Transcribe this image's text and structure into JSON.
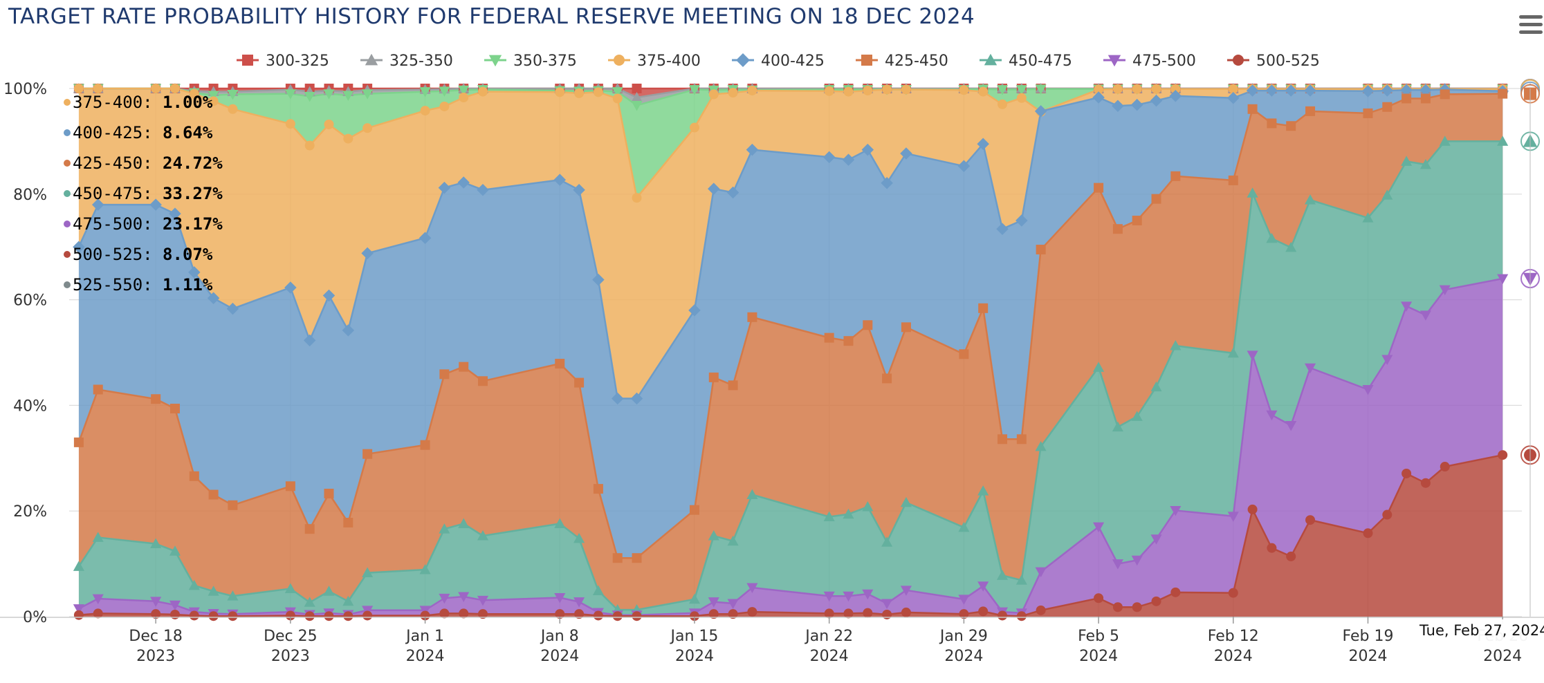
{
  "title": "TARGET RATE PROBABILITY HISTORY FOR FEDERAL RESERVE MEETING ON 18 DEC 2024",
  "hover_date_label": "Tue, Feb 27, 2024",
  "chart_data": {
    "type": "area",
    "stacked": true,
    "title": "TARGET RATE PROBABILITY HISTORY FOR FEDERAL RESERVE MEETING ON 18 DEC 2024",
    "ylim": [
      0,
      100
    ],
    "yticks": [
      "0%",
      "20%",
      "40%",
      "60%",
      "80%",
      "100%"
    ],
    "yticks_values": [
      0,
      20,
      40,
      60,
      80,
      100
    ],
    "xticks": [
      {
        "day": 4,
        "line1": "Dec 18",
        "line2": "2023"
      },
      {
        "day": 11,
        "line1": "Dec 25",
        "line2": "2023"
      },
      {
        "day": 18,
        "line1": "Jan 1",
        "line2": "2024"
      },
      {
        "day": 25,
        "line1": "Jan 8",
        "line2": "2024"
      },
      {
        "day": 32,
        "line1": "Jan 15",
        "line2": "2024"
      },
      {
        "day": 39,
        "line1": "Jan 22",
        "line2": "2024"
      },
      {
        "day": 46,
        "line1": "Jan 29",
        "line2": "2024"
      },
      {
        "day": 53,
        "line1": "Feb 5",
        "line2": "2024"
      },
      {
        "day": 60,
        "line1": "Feb 12",
        "line2": "2024"
      },
      {
        "day": 67,
        "line1": "Feb 19",
        "line2": "2024"
      },
      {
        "day": 74,
        "line1": "Feb 26",
        "line2": "2024"
      }
    ],
    "x_day_range": [
      -0.5,
      75
    ],
    "legend_position": "top-center",
    "x_days": [
      0,
      1,
      4,
      5,
      6,
      7,
      8,
      11,
      12,
      13,
      14,
      15,
      18,
      19,
      20,
      21,
      25,
      26,
      27,
      28,
      29,
      32,
      33,
      34,
      35,
      39,
      40,
      41,
      42,
      43,
      46,
      47,
      48,
      49,
      50,
      53,
      54,
      55,
      56,
      57,
      60,
      61,
      62,
      63,
      64,
      67,
      68,
      69,
      70,
      71,
      74
    ],
    "series": [
      {
        "name": "300-325",
        "color": "#cd4f4a",
        "marker": "square",
        "cumulative_top": [
          100,
          100,
          100,
          100,
          100,
          100,
          100,
          100,
          100,
          100,
          100,
          100,
          100,
          100,
          100,
          100,
          100,
          100,
          100,
          100,
          100,
          100,
          100,
          100,
          100,
          100,
          100,
          100,
          100,
          100,
          100,
          100,
          100,
          100,
          100,
          100,
          100,
          100,
          100,
          100,
          100,
          100,
          100,
          100,
          100,
          100,
          100,
          100,
          100,
          100,
          100
        ]
      },
      {
        "name": "325-350",
        "color": "#9a9ea1",
        "marker": "triangle",
        "cumulative_top": [
          100,
          100,
          100,
          100,
          99.5,
          99.4,
          99.4,
          99.8,
          99.4,
          99.6,
          99.4,
          99.7,
          99.8,
          99.9,
          100,
          100,
          100,
          100,
          100,
          100,
          98.3,
          100,
          100,
          100,
          100,
          100,
          100,
          100,
          100,
          100,
          100,
          100,
          100,
          100,
          100,
          100,
          100,
          100,
          100,
          100,
          100,
          100,
          100,
          100,
          100,
          100,
          100,
          100,
          100,
          100,
          100
        ]
      },
      {
        "name": "350-375",
        "color": "#7dd38c",
        "marker": "triangle-down",
        "cumulative_top": [
          100,
          100,
          100,
          100,
          99.2,
          98.7,
          98.9,
          99,
          98.5,
          99,
          98.7,
          99,
          99.4,
          99.5,
          99.7,
          99.8,
          99.6,
          99.5,
          99.6,
          99.4,
          96.8,
          99.8,
          99.7,
          99.8,
          99.7,
          99.8,
          99.8,
          99.8,
          99.8,
          99.8,
          99.8,
          99.9,
          99.8,
          99.8,
          99.9,
          99.9,
          99.9,
          99.9,
          99.9,
          99.9,
          99.9,
          99.9,
          99.9,
          99.9,
          99.9,
          99.9,
          99.9,
          99.9,
          99.9,
          99.9,
          99.9
        ]
      },
      {
        "name": "375-400",
        "color": "#eeb05f",
        "marker": "circle",
        "cumulative_top": [
          100,
          100,
          100,
          100,
          99,
          97.6,
          96.1,
          93.3,
          89.2,
          93.2,
          90.5,
          92.5,
          95.8,
          96.6,
          98.3,
          99.4,
          99.3,
          99.1,
          99.3,
          98.1,
          79.3,
          92.6,
          98.9,
          99.2,
          99.6,
          99.5,
          99.4,
          99.6,
          99.8,
          99.8,
          99.7,
          99.4,
          97,
          98.2,
          95.6,
          99.8,
          99.9,
          99.9,
          99.9,
          99.9,
          99.9,
          99.9,
          99.9,
          99.9,
          99.9,
          99.9,
          99.9,
          99.9,
          99.9,
          99.9,
          99.9
        ]
      },
      {
        "name": "400-425",
        "color": "#6d9cc8",
        "marker": "diamond",
        "cumulative_top": [
          70,
          78,
          78,
          76.3,
          65.2,
          60.3,
          58.3,
          62.3,
          52.3,
          60.8,
          54.2,
          68.8,
          71.7,
          81.2,
          82.2,
          80.8,
          82.7,
          80.8,
          63.8,
          41.3,
          41.3,
          58,
          81,
          80.3,
          88.4,
          87,
          86.5,
          88.4,
          82.1,
          87.7,
          85.3,
          89.5,
          73.4,
          75,
          95.7,
          98.3,
          96.7,
          96.9,
          97.7,
          98.6,
          98.2,
          99.6,
          99.6,
          99.6,
          99.6,
          99.5,
          99.6,
          99.7,
          99.7,
          99.8,
          99.5
        ]
      },
      {
        "name": "425-450",
        "color": "#d47a49",
        "marker": "square",
        "cumulative_top": [
          33,
          43,
          41.2,
          39.4,
          26.6,
          23.1,
          21.1,
          24.7,
          16.6,
          23.3,
          17.8,
          30.8,
          32.5,
          45.9,
          47.3,
          44.6,
          47.9,
          44.3,
          24.2,
          11.1,
          11.1,
          20.2,
          45.3,
          43.8,
          56.7,
          52.8,
          52.2,
          55.2,
          45.1,
          54.8,
          49.7,
          58.4,
          33.6,
          33.6,
          69.5,
          81.2,
          73.4,
          75,
          79.1,
          83.4,
          82.6,
          96.1,
          93.4,
          92.9,
          95.7,
          95.3,
          96.5,
          98.1,
          98.1,
          98.9,
          99
        ]
      },
      {
        "name": "450-475",
        "color": "#64b09e",
        "marker": "triangle",
        "cumulative_top": [
          9.5,
          15,
          13.8,
          12.4,
          5.9,
          4.8,
          3.9,
          5.3,
          2.7,
          4.8,
          2.9,
          8.3,
          8.9,
          16.6,
          17.6,
          15.3,
          17.6,
          14.8,
          4.9,
          1.3,
          1.3,
          3.3,
          15.3,
          14.3,
          23.1,
          18.9,
          19.4,
          20.8,
          14.1,
          21.6,
          16.9,
          23.8,
          7.8,
          6.9,
          32.2,
          47.2,
          35.9,
          37.9,
          43.5,
          51.3,
          49.9,
          80.2,
          71.6,
          69.9,
          78.9,
          75.5,
          79.8,
          86.2,
          85.6,
          90,
          90
        ]
      },
      {
        "name": "475-500",
        "color": "#9d66c5",
        "marker": "triangle-down",
        "cumulative_top": [
          1.5,
          3.4,
          2.9,
          2.2,
          0.9,
          0.6,
          0.5,
          0.9,
          0.4,
          0.7,
          0.4,
          1.2,
          1.2,
          3.5,
          3.8,
          3.1,
          3.6,
          2.8,
          0.8,
          0.3,
          0.3,
          0.7,
          2.8,
          2.5,
          5.5,
          3.9,
          3.9,
          4.3,
          2.5,
          5,
          3.3,
          5.8,
          0.9,
          0.7,
          8.5,
          17,
          10,
          10.7,
          14.7,
          20.1,
          19,
          49.5,
          38.2,
          36.2,
          47.1,
          43,
          48.7,
          58.8,
          57.1,
          61.9,
          64
        ]
      },
      {
        "name": "500-525",
        "color": "#b64a3e",
        "marker": "circle",
        "cumulative_top": [
          0.3,
          0.6,
          0.5,
          0.4,
          0.2,
          0.1,
          0.1,
          0.2,
          0.1,
          0.1,
          0.1,
          0.2,
          0.2,
          0.6,
          0.6,
          0.5,
          0.5,
          0.5,
          0.2,
          0.1,
          0.1,
          0.1,
          0.5,
          0.5,
          0.9,
          0.6,
          0.6,
          0.7,
          0.4,
          0.8,
          0.5,
          1,
          0.2,
          0.1,
          1.2,
          3.5,
          1.8,
          1.8,
          2.9,
          4.6,
          4.5,
          20.3,
          13,
          11.4,
          18.3,
          15.8,
          19.3,
          27.1,
          25.3,
          28.4,
          30.6
        ]
      }
    ],
    "tooltip_values": [
      {
        "label": "375-400",
        "value": "1.00%",
        "color": "#eeb05f"
      },
      {
        "label": "400-425",
        "value": "8.64%",
        "color": "#6d9cc8"
      },
      {
        "label": "425-450",
        "value": "24.72%",
        "color": "#d47a49"
      },
      {
        "label": "450-475",
        "value": "33.27%",
        "color": "#64b09e"
      },
      {
        "label": "475-500",
        "value": "23.17%",
        "color": "#9d66c5"
      },
      {
        "label": "500-525",
        "value": "8.07%",
        "color": "#b64a3e"
      },
      {
        "label": "525-550",
        "value": "1.11%",
        "color": "#7f8a8c"
      }
    ]
  }
}
